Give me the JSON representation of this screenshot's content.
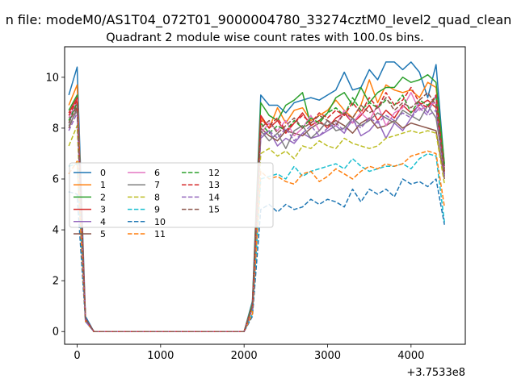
{
  "chart_data": {
    "type": "line",
    "suptitle": "n file: modeM0/AS1T04_072T01_9000004780_33274cztM0_level2_quad_clean",
    "title": "Quadrant 2 module wise count rates with 100.0s bins.",
    "xlabel": "",
    "ylabel": "",
    "x_offset_label": "+3.7533e8",
    "xlim": [
      -150,
      4650
    ],
    "ylim": [
      -0.5,
      11.2
    ],
    "xticks": [
      0,
      1000,
      2000,
      3000,
      4000
    ],
    "xtick_labels": [
      "0",
      "1000",
      "2000",
      "3000",
      "4000"
    ],
    "yticks": [
      0,
      2,
      4,
      6,
      8,
      10
    ],
    "ytick_labels": [
      "0",
      "2",
      "4",
      "6",
      "8",
      "10"
    ],
    "grid": false,
    "legend_position": "center-left",
    "legend_columns": 3,
    "x": [
      -100,
      0,
      100,
      200,
      300,
      400,
      500,
      600,
      700,
      800,
      900,
      1000,
      1100,
      1200,
      1300,
      1400,
      1500,
      1600,
      1700,
      1800,
      1900,
      2000,
      2100,
      2200,
      2300,
      2400,
      2500,
      2600,
      2700,
      2800,
      2900,
      3000,
      3100,
      3200,
      3300,
      3400,
      3500,
      3600,
      3700,
      3800,
      3900,
      4000,
      4100,
      4200,
      4300,
      4400
    ],
    "series": [
      {
        "name": "0",
        "color": "#1f77b4",
        "style": "solid",
        "values": [
          9.3,
          10.4,
          0.6,
          0,
          0,
          0,
          0,
          0,
          0,
          0,
          0,
          0,
          0,
          0,
          0,
          0,
          0,
          0,
          0,
          0,
          0,
          0,
          1.2,
          9.3,
          8.9,
          8.9,
          8.6,
          9.0,
          9.1,
          9.2,
          9.1,
          9.3,
          9.5,
          10.2,
          9.5,
          9.6,
          10.3,
          9.9,
          10.6,
          10.6,
          10.3,
          10.6,
          10.2,
          9.2,
          10.5,
          6.5
        ]
      },
      {
        "name": "1",
        "color": "#ff7f0e",
        "style": "solid",
        "values": [
          8.9,
          9.7,
          0.5,
          0,
          0,
          0,
          0,
          0,
          0,
          0,
          0,
          0,
          0,
          0,
          0,
          0,
          0,
          0,
          0,
          0,
          0,
          0,
          1.1,
          8.4,
          8.0,
          8.8,
          8.2,
          8.7,
          8.8,
          8.3,
          8.5,
          8.7,
          9.1,
          8.7,
          8.4,
          8.9,
          9.9,
          9.0,
          9.7,
          9.5,
          9.4,
          9.5,
          9.2,
          9.8,
          9.6,
          6.3
        ]
      },
      {
        "name": "2",
        "color": "#2ca02c",
        "style": "solid",
        "values": [
          8.7,
          9.3,
          0.5,
          0,
          0,
          0,
          0,
          0,
          0,
          0,
          0,
          0,
          0,
          0,
          0,
          0,
          0,
          0,
          0,
          0,
          0,
          0,
          1.1,
          9.0,
          8.5,
          8.3,
          8.9,
          9.1,
          9.4,
          8.1,
          8.3,
          8.6,
          9.2,
          9.4,
          8.9,
          9.6,
          9.0,
          9.4,
          9.6,
          9.6,
          10.0,
          9.8,
          9.9,
          10.1,
          9.8,
          6.6
        ]
      },
      {
        "name": "3",
        "color": "#d62728",
        "style": "solid",
        "values": [
          8.6,
          9.2,
          0.5,
          0,
          0,
          0,
          0,
          0,
          0,
          0,
          0,
          0,
          0,
          0,
          0,
          0,
          0,
          0,
          0,
          0,
          0,
          0,
          1.0,
          8.5,
          8.0,
          8.3,
          7.8,
          8.2,
          8.6,
          8.1,
          8.3,
          8.0,
          8.4,
          8.6,
          8.2,
          8.5,
          8.9,
          8.3,
          8.7,
          8.4,
          8.9,
          8.6,
          8.9,
          9.1,
          8.8,
          6.2
        ]
      },
      {
        "name": "4",
        "color": "#9467bd",
        "style": "solid",
        "values": [
          8.2,
          9.0,
          0.5,
          0,
          0,
          0,
          0,
          0,
          0,
          0,
          0,
          0,
          0,
          0,
          0,
          0,
          0,
          0,
          0,
          0,
          0,
          0,
          1.0,
          7.6,
          7.9,
          7.3,
          7.6,
          7.4,
          7.8,
          7.6,
          7.7,
          7.9,
          8.1,
          7.8,
          8.4,
          7.7,
          7.9,
          8.3,
          7.6,
          8.2,
          7.9,
          8.4,
          9.0,
          8.6,
          9.3,
          6.1
        ]
      },
      {
        "name": "5",
        "color": "#8c564b",
        "style": "solid",
        "values": [
          8.0,
          8.8,
          0.5,
          0,
          0,
          0,
          0,
          0,
          0,
          0,
          0,
          0,
          0,
          0,
          0,
          0,
          0,
          0,
          0,
          0,
          0,
          0,
          1.0,
          8.0,
          7.7,
          7.5,
          7.9,
          7.8,
          7.7,
          8.0,
          8.2,
          8.1,
          8.3,
          8.1,
          7.8,
          8.2,
          8.4,
          8.0,
          8.1,
          8.3,
          8.0,
          8.2,
          8.1,
          8.0,
          7.9,
          6.0
        ]
      },
      {
        "name": "6",
        "color": "#e377c2",
        "style": "solid",
        "values": [
          8.4,
          9.1,
          0.5,
          0,
          0,
          0,
          0,
          0,
          0,
          0,
          0,
          0,
          0,
          0,
          0,
          0,
          0,
          0,
          0,
          0,
          0,
          0,
          1.0,
          7.8,
          8.2,
          7.9,
          8.3,
          7.7,
          8.0,
          8.5,
          7.9,
          8.3,
          8.1,
          8.7,
          8.2,
          8.6,
          8.3,
          8.9,
          8.1,
          8.6,
          8.8,
          9.4,
          8.7,
          8.9,
          9.0,
          6.3
        ]
      },
      {
        "name": "7",
        "color": "#7f7f7f",
        "style": "solid",
        "values": [
          8.1,
          8.7,
          0.5,
          0,
          0,
          0,
          0,
          0,
          0,
          0,
          0,
          0,
          0,
          0,
          0,
          0,
          0,
          0,
          0,
          0,
          0,
          0,
          1.0,
          7.9,
          7.5,
          7.8,
          7.2,
          7.9,
          8.1,
          7.6,
          7.9,
          8.3,
          7.9,
          8.0,
          8.4,
          8.1,
          8.3,
          8.6,
          8.4,
          8.2,
          8.7,
          8.5,
          8.3,
          8.9,
          8.4,
          6.2
        ]
      },
      {
        "name": "8",
        "color": "#bcbd22",
        "style": "dashed",
        "values": [
          7.3,
          8.1,
          0.4,
          0,
          0,
          0,
          0,
          0,
          0,
          0,
          0,
          0,
          0,
          0,
          0,
          0,
          0,
          0,
          0,
          0,
          0,
          0,
          0.9,
          7.0,
          7.2,
          6.9,
          7.1,
          6.8,
          7.3,
          7.2,
          7.5,
          7.3,
          7.2,
          7.6,
          7.4,
          7.3,
          7.2,
          7.3,
          7.6,
          7.7,
          7.8,
          7.9,
          7.8,
          7.9,
          7.8,
          5.8
        ]
      },
      {
        "name": "9",
        "color": "#17becf",
        "style": "dashed",
        "values": [
          6.5,
          6.6,
          0.4,
          0,
          0,
          0,
          0,
          0,
          0,
          0,
          0,
          0,
          0,
          0,
          0,
          0,
          0,
          0,
          0,
          0,
          0,
          0,
          0.7,
          6.0,
          6.1,
          6.2,
          6.0,
          6.5,
          6.1,
          6.3,
          6.4,
          6.5,
          6.6,
          6.4,
          6.8,
          6.5,
          6.3,
          6.4,
          6.5,
          6.5,
          6.6,
          6.4,
          6.8,
          7.0,
          6.9,
          4.3
        ]
      },
      {
        "name": "10",
        "color": "#1f77b4",
        "style": "dashed",
        "values": [
          5.5,
          5.4,
          0.4,
          0,
          0,
          0,
          0,
          0,
          0,
          0,
          0,
          0,
          0,
          0,
          0,
          0,
          0,
          0,
          0,
          0,
          0,
          0,
          0.6,
          4.8,
          5.0,
          4.7,
          5.0,
          4.8,
          4.9,
          5.2,
          5.0,
          5.2,
          5.1,
          4.9,
          5.6,
          5.1,
          5.6,
          5.4,
          5.6,
          5.3,
          6.0,
          5.8,
          5.9,
          5.7,
          6.0,
          4.2
        ]
      },
      {
        "name": "11",
        "color": "#ff7f0e",
        "style": "dashed",
        "values": [
          6.2,
          6.7,
          0.4,
          0,
          0,
          0,
          0,
          0,
          0,
          0,
          0,
          0,
          0,
          0,
          0,
          0,
          0,
          0,
          0,
          0,
          0,
          0,
          0.7,
          6.3,
          6.0,
          6.1,
          5.9,
          5.8,
          6.2,
          6.3,
          5.9,
          6.1,
          6.4,
          6.2,
          6.0,
          6.3,
          6.5,
          6.4,
          6.6,
          6.5,
          6.6,
          6.9,
          7.0,
          7.1,
          7.0,
          4.9
        ]
      },
      {
        "name": "12",
        "color": "#2ca02c",
        "style": "dashed",
        "values": [
          8.3,
          9.0,
          0.5,
          0,
          0,
          0,
          0,
          0,
          0,
          0,
          0,
          0,
          0,
          0,
          0,
          0,
          0,
          0,
          0,
          0,
          0,
          0,
          1.0,
          8.2,
          7.8,
          8.1,
          7.9,
          8.3,
          8.0,
          8.4,
          8.2,
          8.6,
          8.8,
          8.5,
          9.2,
          8.7,
          9.0,
          8.8,
          9.1,
          8.9,
          9.3,
          8.6,
          9.1,
          8.9,
          9.2,
          6.4
        ]
      },
      {
        "name": "13",
        "color": "#d62728",
        "style": "dashed",
        "values": [
          8.5,
          9.1,
          0.5,
          0,
          0,
          0,
          0,
          0,
          0,
          0,
          0,
          0,
          0,
          0,
          0,
          0,
          0,
          0,
          0,
          0,
          0,
          0,
          1.0,
          8.3,
          8.1,
          8.4,
          7.9,
          8.2,
          8.5,
          8.2,
          8.6,
          8.4,
          8.7,
          8.5,
          9.0,
          8.6,
          9.2,
          8.8,
          9.4,
          8.9,
          9.1,
          9.6,
          9.0,
          8.8,
          9.3,
          6.3
        ]
      },
      {
        "name": "14",
        "color": "#9467bd",
        "style": "dashed",
        "values": [
          7.9,
          8.6,
          0.4,
          0,
          0,
          0,
          0,
          0,
          0,
          0,
          0,
          0,
          0,
          0,
          0,
          0,
          0,
          0,
          0,
          0,
          0,
          0,
          0.9,
          7.7,
          7.9,
          7.6,
          8.0,
          7.5,
          7.8,
          8.1,
          7.7,
          8.0,
          8.2,
          7.9,
          8.3,
          8.0,
          8.4,
          8.2,
          8.5,
          8.3,
          8.6,
          8.4,
          8.8,
          8.5,
          8.7,
          6.1
        ]
      },
      {
        "name": "15",
        "color": "#8c564b",
        "style": "dashed",
        "values": [
          8.2,
          8.9,
          0.5,
          0,
          0,
          0,
          0,
          0,
          0,
          0,
          0,
          0,
          0,
          0,
          0,
          0,
          0,
          0,
          0,
          0,
          0,
          0,
          1.0,
          8.0,
          8.3,
          7.8,
          8.1,
          8.4,
          8.0,
          8.2,
          8.5,
          8.3,
          8.1,
          8.6,
          8.4,
          8.9,
          8.6,
          8.8,
          9.2,
          8.7,
          9.0,
          8.8,
          9.1,
          9.4,
          8.9,
          6.2
        ]
      }
    ]
  }
}
